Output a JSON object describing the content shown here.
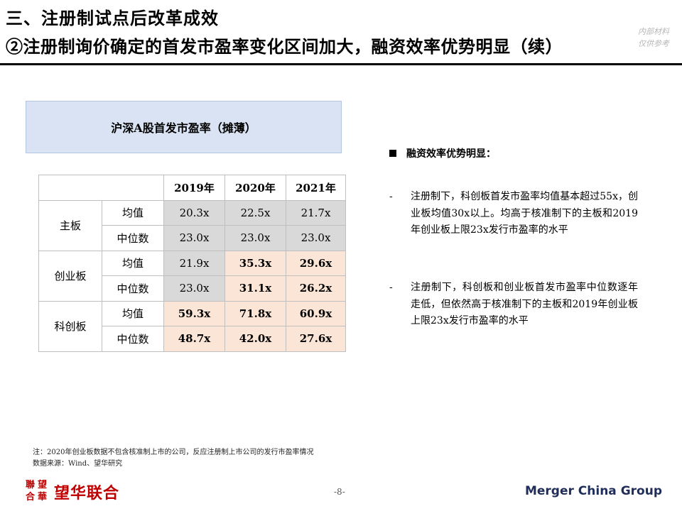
{
  "header": {
    "title_line1": "三、注册制试点后改革成效",
    "title_line2": "②注册制询价确定的首发市盈率变化区间加大，融资效率优势明显（续）",
    "watermark_line1": "内部材料",
    "watermark_line2": "仅供参考"
  },
  "table": {
    "title": "沪深A股首发市盈率（摊薄）",
    "year_headers": [
      "2019年",
      "2020年",
      "2021年"
    ],
    "groups": [
      {
        "name": "主板",
        "rows": [
          {
            "metric": "均值",
            "values": [
              "20.3x",
              "22.5x",
              "21.7x"
            ]
          },
          {
            "metric": "中位数",
            "values": [
              "23.0x",
              "23.0x",
              "23.0x"
            ]
          }
        ]
      },
      {
        "name": "创业板",
        "rows": [
          {
            "metric": "均值",
            "values": [
              "21.9x",
              "35.3x",
              "29.6x"
            ]
          },
          {
            "metric": "中位数",
            "values": [
              "23.0x",
              "31.1x",
              "26.2x"
            ]
          }
        ]
      },
      {
        "name": "科创板",
        "rows": [
          {
            "metric": "均值",
            "values": [
              "59.3x",
              "71.8x",
              "60.9x"
            ]
          },
          {
            "metric": "中位数",
            "values": [
              "48.7x",
              "42.0x",
              "27.6x"
            ]
          }
        ]
      }
    ]
  },
  "bullets": {
    "heading": "融资效率优势明显：",
    "dash": "-",
    "items": [
      "注册制下，科创板首发市盈率均值基本超过55x，创业板均值30x以上。均高于核准制下的主板和2019年创业板上限23x发行市盈率的水平",
      "注册制下，科创板和创业板首发市盈率中位数逐年走低，但依然高于核准制下的主板和2019年创业板上限23x发行市盈率的水平"
    ]
  },
  "footer": {
    "note": "注：2020年创业板数据不包含核准制上市的公司，反应注册制上市公司的发行市盈率情况",
    "source": "数据来源：Wind、望华研究",
    "logo_chars": [
      "聯",
      "望",
      "合",
      "華"
    ],
    "logo_text": "望华联合",
    "page_number": "-8-",
    "brand": "Merger China Group"
  },
  "colors": {
    "header_fill": "#dae3f3",
    "grey_cell": "#d9d9d9",
    "highlight_cell": "#fbe5d6",
    "logo_red": "#c00000",
    "brand_navy": "#1f2d5a"
  }
}
